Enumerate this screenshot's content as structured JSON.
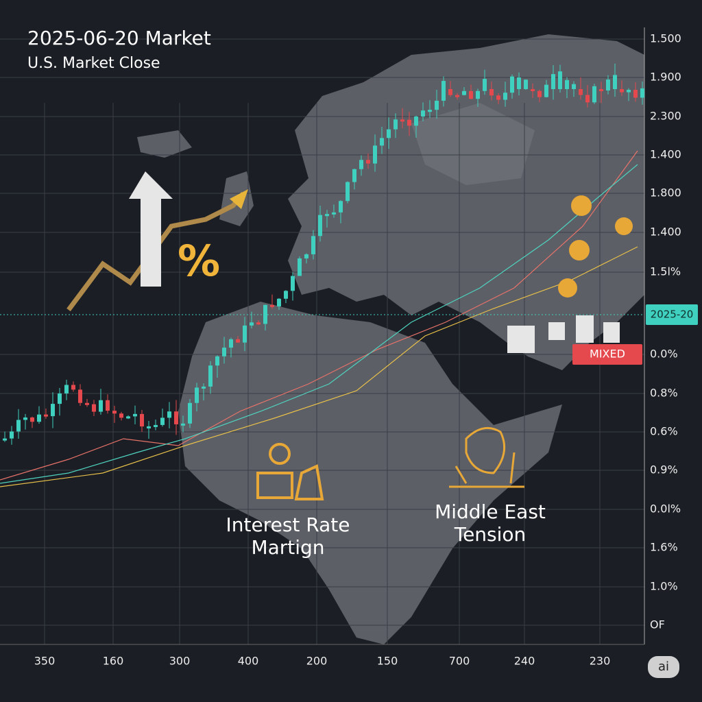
{
  "header": {
    "title": "2025-06-20 Market",
    "subtitle": "U.S. Market Close"
  },
  "right_axis": {
    "labels": [
      "1.500",
      "1.900",
      "2.300",
      "1.400",
      "1.800",
      "1.400",
      "1.5l%",
      "0.0%",
      "0.8%",
      "0.6%",
      "0.9%",
      "0.0l%",
      "1.6%",
      "1.0%",
      "OF"
    ]
  },
  "date_marker": "2025-20",
  "badge": "MIXED",
  "bottom_axis": {
    "labels": [
      "350",
      "160",
      "300",
      "400",
      "200",
      "150",
      "700",
      "240",
      "230"
    ]
  },
  "annotations": [
    {
      "lines": [
        "Interest Rate",
        "Martign"
      ]
    },
    {
      "lines": [
        "Middle East",
        "Tension"
      ]
    }
  ],
  "logo": "ai"
}
